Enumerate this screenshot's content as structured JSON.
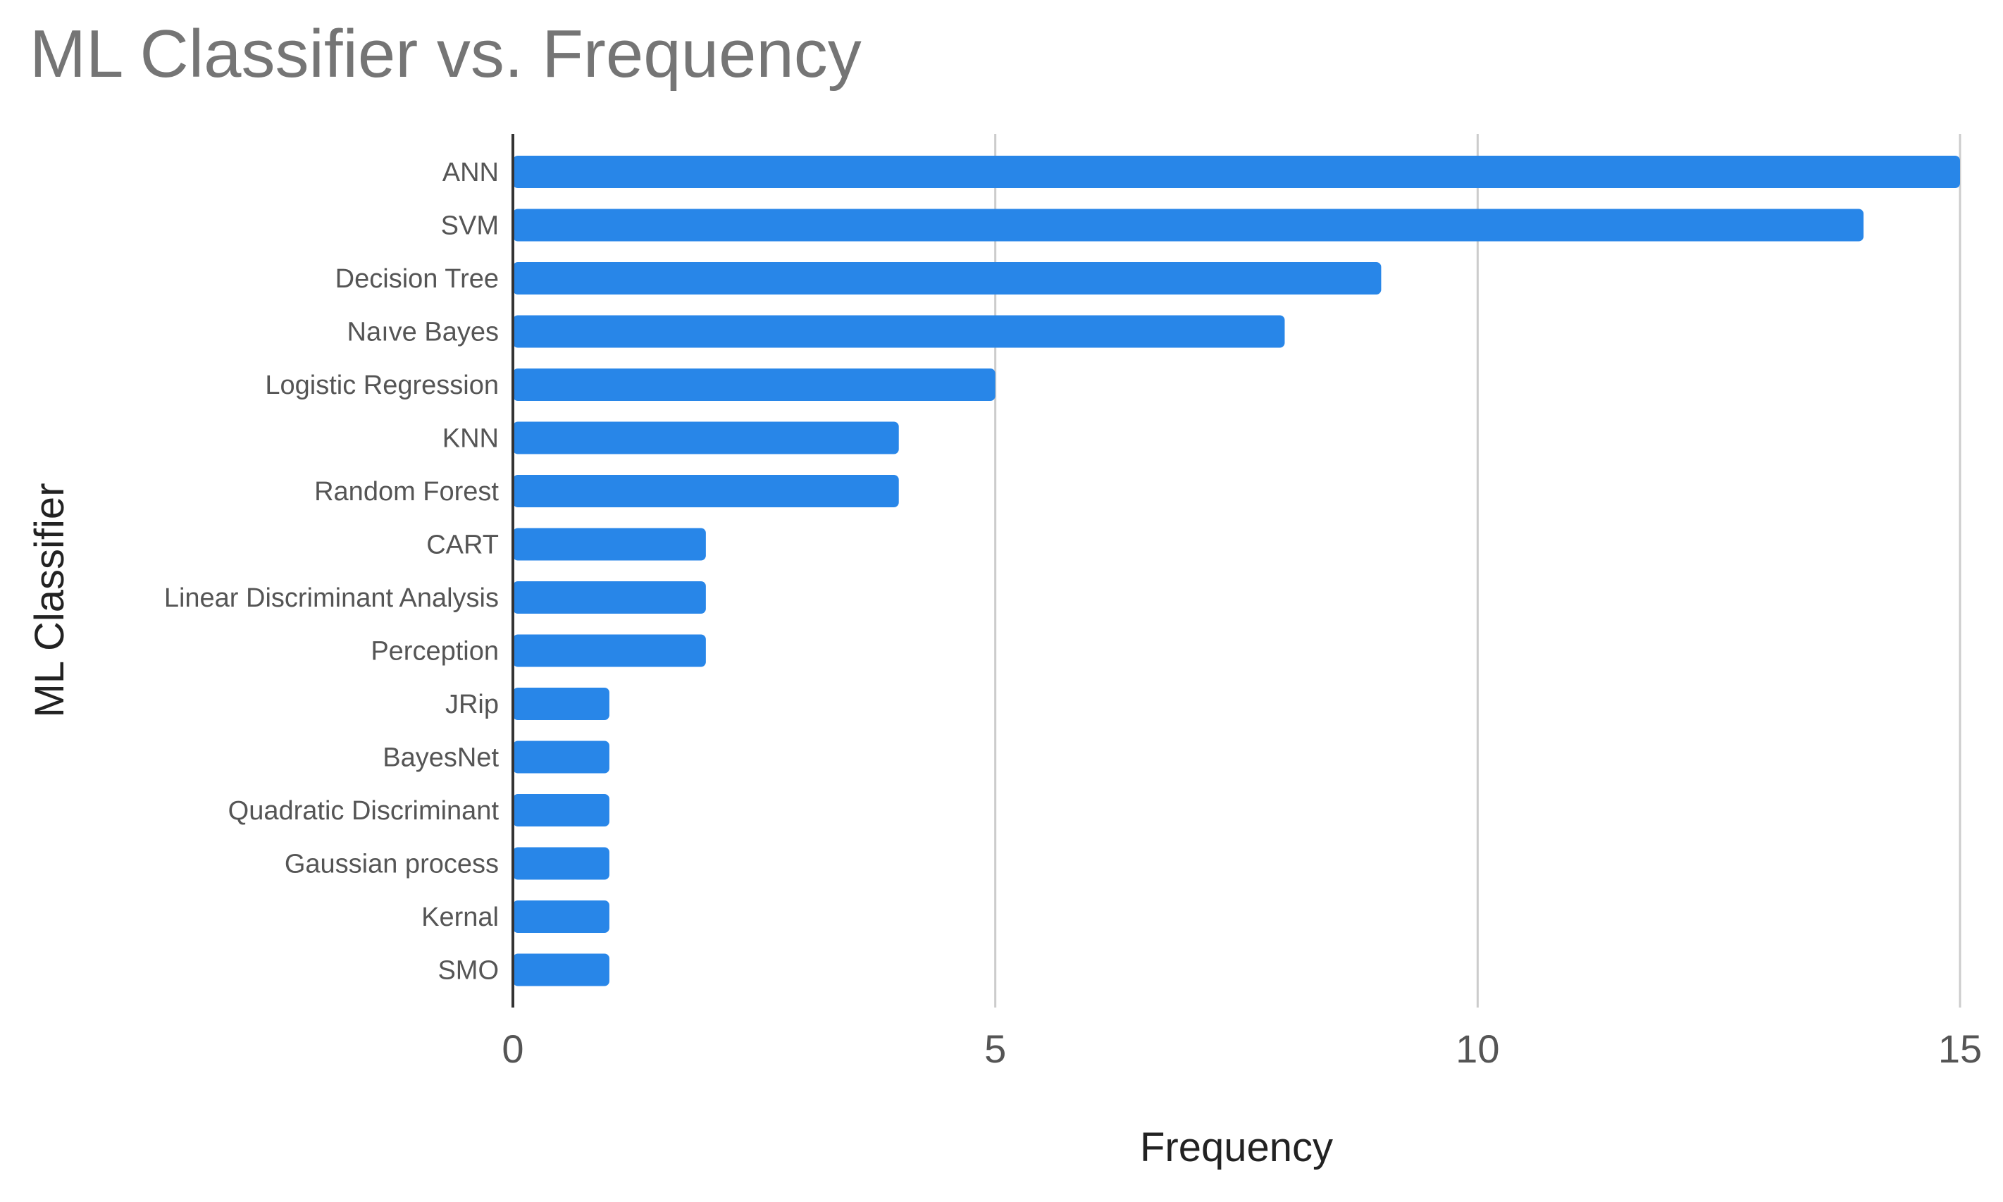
{
  "chart_data": {
    "type": "bar",
    "orientation": "horizontal",
    "title": "ML Classifier vs. Frequency",
    "xlabel": "Frequency",
    "ylabel": "ML Classifier",
    "categories": [
      "ANN",
      "SVM",
      "Decision Tree",
      "Naıve Bayes",
      "Logistic Regression",
      "KNN",
      "Random Forest",
      "CART",
      "Linear Discriminant Analysis",
      "Perception",
      "JRip",
      "BayesNet",
      "Quadratic Discriminant",
      "Gaussian process",
      "Kernal",
      "SMO"
    ],
    "values": [
      15,
      14,
      9,
      8,
      5,
      4,
      4,
      2,
      2,
      2,
      1,
      1,
      1,
      1,
      1,
      1
    ],
    "xlim": [
      0,
      15
    ],
    "xticks": [
      "0",
      "5",
      "10",
      "15"
    ],
    "xtick_values": [
      0,
      5,
      10,
      15
    ],
    "grid": "vertical",
    "legend": "none",
    "colors": {
      "bar": "#2886e8",
      "grid": "#cccccc",
      "axis": "#333333",
      "title": "#757575",
      "category_label": "#555555",
      "tick_label": "#555555",
      "axis_title": "#222222"
    }
  }
}
